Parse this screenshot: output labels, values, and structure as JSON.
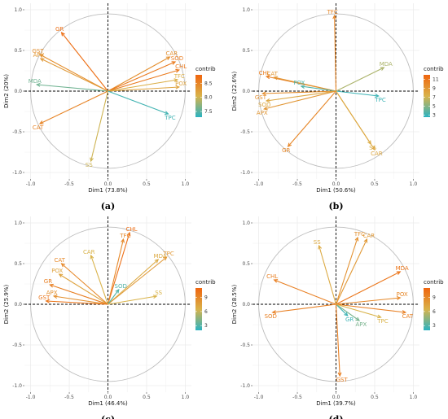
{
  "colors": {
    "low": "#2AB3C2",
    "mid": "#D9B34A",
    "high": "#F0650E",
    "grid": "#ececec",
    "circle": "#bdbdbd"
  },
  "chart_data": [
    {
      "type": "scatter",
      "panel_label": "(a)",
      "xlabel": "Dim1 (73.8%)",
      "ylabel": "Dim2 (20%)",
      "xlim": [
        -1.0,
        1.0
      ],
      "ylim": [
        -1.0,
        1.0
      ],
      "xticks": [
        "-1.0",
        "-0.5",
        "0.0",
        "0.5",
        "1.0"
      ],
      "yticks": [
        "1.0",
        "0.5",
        "0.0",
        "-0.5",
        "-1.0"
      ],
      "grid": true,
      "legend": {
        "title": "contrib",
        "labels": [
          "8.5",
          "8.0",
          "7.5"
        ],
        "values": [
          8.5,
          8.0,
          7.5
        ],
        "min": 7.3,
        "max": 8.8,
        "placement": "right"
      },
      "variables": [
        {
          "name": "GR",
          "x": -0.6,
          "y": 0.72,
          "contrib": 8.7
        },
        {
          "name": "GST",
          "x": -0.88,
          "y": 0.45,
          "contrib": 8.4
        },
        {
          "name": "APX",
          "x": -0.87,
          "y": 0.4,
          "contrib": 8.3
        },
        {
          "name": "MDA",
          "x": -0.92,
          "y": 0.08,
          "contrib": 7.6
        },
        {
          "name": "CAT",
          "x": -0.88,
          "y": -0.4,
          "contrib": 8.5
        },
        {
          "name": "SS",
          "x": -0.22,
          "y": -0.86,
          "contrib": 8.0
        },
        {
          "name": "CAR",
          "x": 0.8,
          "y": 0.42,
          "contrib": 8.4
        },
        {
          "name": "SOD",
          "x": 0.87,
          "y": 0.36,
          "contrib": 8.6
        },
        {
          "name": "CHL",
          "x": 0.92,
          "y": 0.26,
          "contrib": 8.6
        },
        {
          "name": "TFC",
          "x": 0.9,
          "y": 0.14,
          "contrib": 8.1
        },
        {
          "name": "POX",
          "x": 0.92,
          "y": 0.05,
          "contrib": 8.2
        },
        {
          "name": "TPC",
          "x": 0.78,
          "y": -0.28,
          "contrib": 7.4
        }
      ]
    },
    {
      "type": "scatter",
      "panel_label": "(b)",
      "xlabel": "Dim1 (50.6%)",
      "ylabel": "Dim2 (22.6%)",
      "xlim": [
        -1.0,
        1.0
      ],
      "ylim": [
        -1.0,
        1.0
      ],
      "xticks": [
        "-1.0",
        "-0.5",
        "0.0",
        "0.5",
        "1.0"
      ],
      "yticks": [
        "1.0",
        "0.5",
        "0.0",
        "-0.5",
        "-1.0"
      ],
      "grid": true,
      "legend": {
        "title": "contrib",
        "labels": [
          "11",
          "9",
          "7",
          "5",
          "3"
        ],
        "values": [
          11,
          9,
          7,
          5,
          3
        ],
        "min": 2.5,
        "max": 12.0,
        "placement": "right"
      },
      "variables": [
        {
          "name": "TFC",
          "x": -0.02,
          "y": 0.93,
          "contrib": 10.0
        },
        {
          "name": "MDA",
          "x": 0.62,
          "y": 0.29,
          "contrib": 6.0
        },
        {
          "name": "CHL",
          "x": -0.9,
          "y": 0.18,
          "contrib": 10.5
        },
        {
          "name": "CAT",
          "x": -0.8,
          "y": 0.17,
          "contrib": 9.0
        },
        {
          "name": "POX",
          "x": -0.45,
          "y": 0.06,
          "contrib": 3.5
        },
        {
          "name": "TPC",
          "x": 0.55,
          "y": -0.06,
          "contrib": 3.0
        },
        {
          "name": "GST",
          "x": -0.95,
          "y": -0.03,
          "contrib": 9.5
        },
        {
          "name": "SOD",
          "x": -0.9,
          "y": -0.12,
          "contrib": 8.0
        },
        {
          "name": "APX",
          "x": -0.93,
          "y": -0.22,
          "contrib": 9.0
        },
        {
          "name": "GR",
          "x": -0.62,
          "y": -0.68,
          "contrib": 10.0
        },
        {
          "name": "SS",
          "x": 0.45,
          "y": -0.65,
          "contrib": 7.5
        },
        {
          "name": "CAR",
          "x": 0.5,
          "y": -0.72,
          "contrib": 8.0
        }
      ]
    },
    {
      "type": "scatter",
      "panel_label": "(c)",
      "xlabel": "Dim1 (46.4%)",
      "ylabel": "Dim2 (25.9%)",
      "xlim": [
        -1.0,
        1.0
      ],
      "ylim": [
        -1.0,
        1.0
      ],
      "xticks": [
        "-1.0",
        "-0.5",
        "0.0",
        "0.5",
        "1.0"
      ],
      "yticks": [
        "1.0",
        "0.5",
        "0.0",
        "-0.5",
        "-1.0"
      ],
      "grid": true,
      "legend": {
        "title": "contrib",
        "labels": [
          "9",
          "6",
          "3"
        ],
        "values": [
          9,
          6,
          3
        ],
        "min": 2.0,
        "max": 11.0,
        "placement": "right"
      },
      "variables": [
        {
          "name": "CHL",
          "x": 0.28,
          "y": 0.88,
          "contrib": 10.5
        },
        {
          "name": "TFC",
          "x": 0.2,
          "y": 0.8,
          "contrib": 9.0
        },
        {
          "name": "CAR",
          "x": -0.22,
          "y": 0.6,
          "contrib": 6.5
        },
        {
          "name": "MDA",
          "x": 0.65,
          "y": 0.55,
          "contrib": 7.0
        },
        {
          "name": "TPC",
          "x": 0.76,
          "y": 0.58,
          "contrib": 8.0
        },
        {
          "name": "CAT",
          "x": -0.6,
          "y": 0.5,
          "contrib": 9.0
        },
        {
          "name": "POX",
          "x": -0.63,
          "y": 0.37,
          "contrib": 7.5
        },
        {
          "name": "SOD",
          "x": 0.14,
          "y": 0.18,
          "contrib": 3.0
        },
        {
          "name": "GR",
          "x": -0.75,
          "y": 0.24,
          "contrib": 9.5
        },
        {
          "name": "APX",
          "x": -0.7,
          "y": 0.1,
          "contrib": 8.5
        },
        {
          "name": "GST",
          "x": -0.8,
          "y": 0.04,
          "contrib": 10.0
        },
        {
          "name": "SS",
          "x": 0.63,
          "y": 0.1,
          "contrib": 6.5
        }
      ]
    },
    {
      "type": "scatter",
      "panel_label": "(d)",
      "xlabel": "Dim1 (39.7%)",
      "ylabel": "Dim2 (28.5%)",
      "xlim": [
        -1.0,
        1.0
      ],
      "ylim": [
        -1.0,
        1.0
      ],
      "xticks": [
        "-1.0",
        "-0.5",
        "0.0",
        "0.5",
        "1.0"
      ],
      "yticks": [
        "1.0",
        "0.5",
        "0.0",
        "-0.5",
        "-1.0"
      ],
      "grid": true,
      "legend": {
        "title": "contrib",
        "labels": [
          "9",
          "6",
          "3"
        ],
        "values": [
          9,
          6,
          3
        ],
        "min": 2.0,
        "max": 11.0,
        "placement": "right"
      },
      "variables": [
        {
          "name": "TFC",
          "x": 0.28,
          "y": 0.82,
          "contrib": 8.5
        },
        {
          "name": "CAR",
          "x": 0.4,
          "y": 0.8,
          "contrib": 8.0
        },
        {
          "name": "SS",
          "x": -0.22,
          "y": 0.72,
          "contrib": 7.0
        },
        {
          "name": "MDA",
          "x": 0.83,
          "y": 0.4,
          "contrib": 10.0
        },
        {
          "name": "CHL",
          "x": -0.8,
          "y": 0.3,
          "contrib": 9.5
        },
        {
          "name": "POX",
          "x": 0.83,
          "y": 0.08,
          "contrib": 9.0
        },
        {
          "name": "SOD",
          "x": -0.82,
          "y": -0.1,
          "contrib": 9.5
        },
        {
          "name": "CAT",
          "x": 0.9,
          "y": -0.1,
          "contrib": 9.5
        },
        {
          "name": "GR",
          "x": 0.15,
          "y": -0.14,
          "contrib": 2.5
        },
        {
          "name": "APX",
          "x": 0.3,
          "y": -0.2,
          "contrib": 4.0
        },
        {
          "name": "TPC",
          "x": 0.58,
          "y": -0.16,
          "contrib": 6.5
        },
        {
          "name": "GST",
          "x": 0.05,
          "y": -0.88,
          "contrib": 9.5
        }
      ]
    }
  ]
}
